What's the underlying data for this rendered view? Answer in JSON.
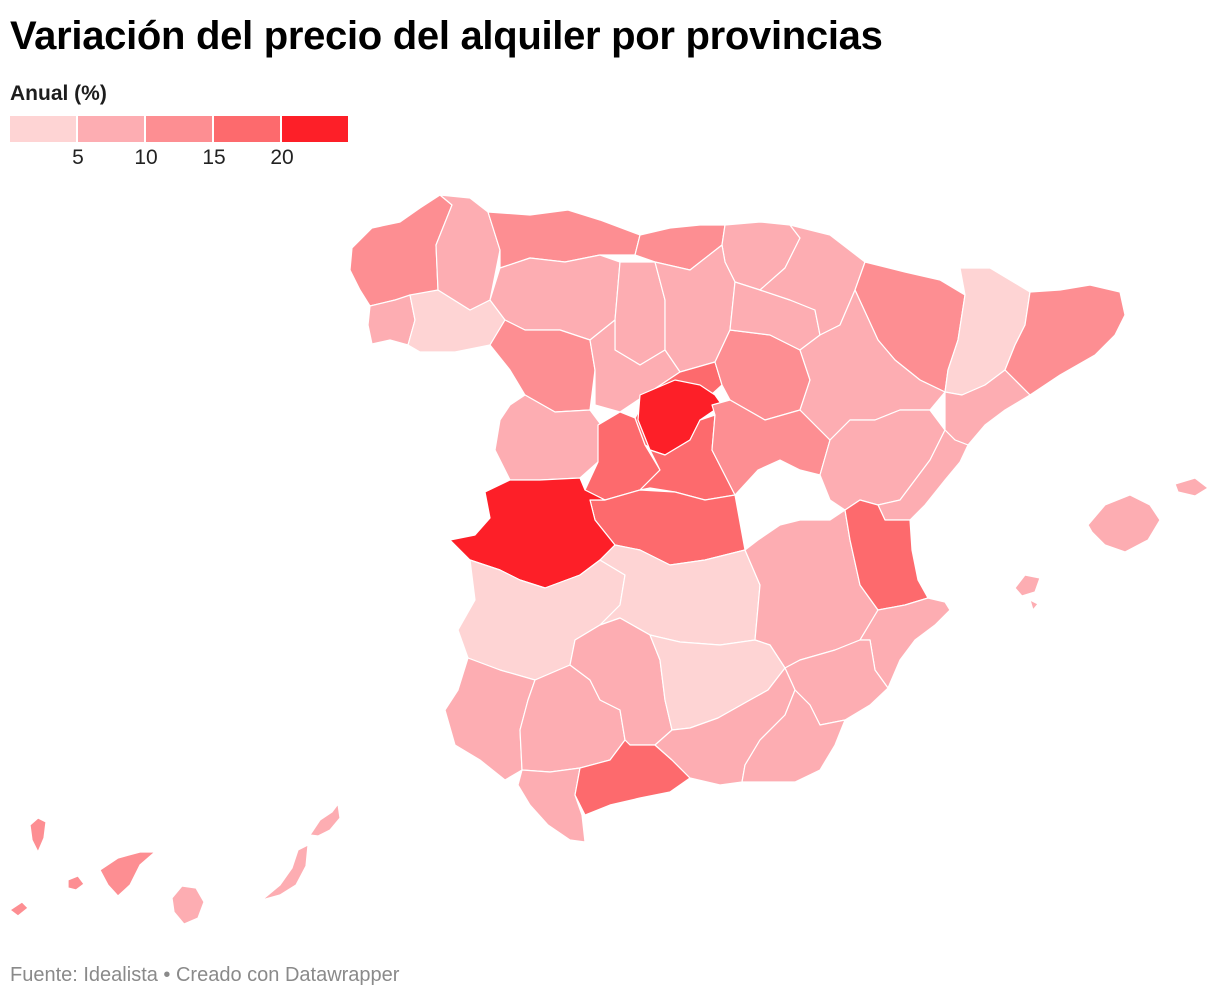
{
  "title": "Variación del precio del alquiler por provincias",
  "legend": {
    "title": "Anual (%)",
    "ticks": [
      "5",
      "10",
      "15",
      "20"
    ],
    "bins": [
      {
        "min": null,
        "max": 5,
        "color": "#fed4d4"
      },
      {
        "min": 5,
        "max": 10,
        "color": "#fdadb2"
      },
      {
        "min": 10,
        "max": 15,
        "color": "#fd8e92"
      },
      {
        "min": 15,
        "max": 20,
        "color": "#fd6a6d"
      },
      {
        "min": 20,
        "max": null,
        "color": "#fd1f28"
      }
    ]
  },
  "map": {
    "provinces": [
      {
        "id": "a-coruna",
        "bin": 2
      },
      {
        "id": "pontevedra",
        "bin": 1
      },
      {
        "id": "ourense",
        "bin": 0
      },
      {
        "id": "lugo",
        "bin": 1
      },
      {
        "id": "asturias",
        "bin": 2
      },
      {
        "id": "cantabria",
        "bin": 2
      },
      {
        "id": "leon",
        "bin": 1
      },
      {
        "id": "zamora",
        "bin": 2
      },
      {
        "id": "palencia",
        "bin": 1
      },
      {
        "id": "burgos",
        "bin": 1
      },
      {
        "id": "valladolid",
        "bin": 1
      },
      {
        "id": "salamanca",
        "bin": 1
      },
      {
        "id": "segovia",
        "bin": 3
      },
      {
        "id": "avila",
        "bin": 3
      },
      {
        "id": "guadalajara",
        "bin": 4
      },
      {
        "id": "madrid",
        "bin": 3
      },
      {
        "id": "toledo",
        "bin": 3
      },
      {
        "id": "caceres",
        "bin": 4
      },
      {
        "id": "badajoz",
        "bin": 0
      },
      {
        "id": "ciudad-real",
        "bin": 0
      },
      {
        "id": "cuenca",
        "bin": 2
      },
      {
        "id": "albacete",
        "bin": 1
      },
      {
        "id": "soria",
        "bin": 2
      },
      {
        "id": "la-rioja",
        "bin": 1
      },
      {
        "id": "navarra",
        "bin": 1
      },
      {
        "id": "pais-vasco",
        "bin": 1
      },
      {
        "id": "huesca",
        "bin": 2
      },
      {
        "id": "zaragoza",
        "bin": 1
      },
      {
        "id": "teruel",
        "bin": 1
      },
      {
        "id": "lleida",
        "bin": 0
      },
      {
        "id": "barcelona-girona",
        "bin": 2
      },
      {
        "id": "tarragona",
        "bin": 1
      },
      {
        "id": "castellon",
        "bin": 1
      },
      {
        "id": "valencia",
        "bin": 3
      },
      {
        "id": "alicante",
        "bin": 1
      },
      {
        "id": "murcia",
        "bin": 1
      },
      {
        "id": "huelva",
        "bin": 1
      },
      {
        "id": "sevilla",
        "bin": 1
      },
      {
        "id": "cordoba",
        "bin": 1
      },
      {
        "id": "jaen",
        "bin": 0
      },
      {
        "id": "cadiz",
        "bin": 1
      },
      {
        "id": "malaga",
        "bin": 3
      },
      {
        "id": "granada",
        "bin": 1
      },
      {
        "id": "almeria",
        "bin": 1
      },
      {
        "id": "mallorca",
        "bin": 1
      },
      {
        "id": "menorca",
        "bin": 1
      },
      {
        "id": "ibiza",
        "bin": 1
      },
      {
        "id": "tenerife",
        "bin": 2
      },
      {
        "id": "gran-canaria",
        "bin": 1
      },
      {
        "id": "fuerteventura",
        "bin": 1
      },
      {
        "id": "lanzarote",
        "bin": 1
      },
      {
        "id": "la-palma",
        "bin": 2
      },
      {
        "id": "la-gomera",
        "bin": 2
      },
      {
        "id": "el-hierro",
        "bin": 2
      }
    ]
  },
  "source": "Fuente: Idealista • Creado con Datawrapper"
}
